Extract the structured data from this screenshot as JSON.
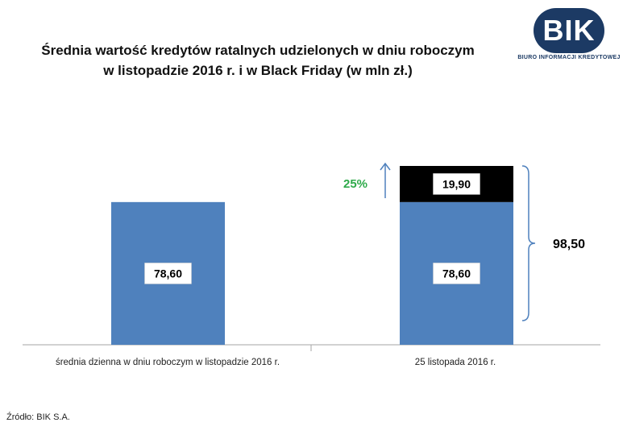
{
  "title_line1": "Średnia wartość kredytów ratalnych udzielonych w dniu roboczym",
  "title_line2": "w listopadzie 2016 r. i w Black Friday (w mln zł.)",
  "logo": {
    "text": "BIK",
    "subtitle": "BIURO INFORMACJI KREDYTOWEJ"
  },
  "source": "Źródło: BIK S.A.",
  "chart_data": {
    "type": "bar",
    "stacked": true,
    "categories": [
      "średnia dzienna w dniu roboczym w listopadzie 2016 r.",
      "25 listopada 2016 r."
    ],
    "series": [
      {
        "values": [
          78.6,
          78.6
        ],
        "labels": [
          "78,60",
          "78,60"
        ],
        "color": "#4f81bd"
      },
      {
        "values": [
          0,
          19.9
        ],
        "labels": [
          "",
          "19,90"
        ],
        "color": "#000000"
      }
    ],
    "annotations": {
      "increase_label": "25%",
      "increase_color": "#2eaa4a",
      "total_label": "98,50"
    },
    "ylim": [
      0,
      98.5
    ],
    "grid": false,
    "legend": "none"
  }
}
